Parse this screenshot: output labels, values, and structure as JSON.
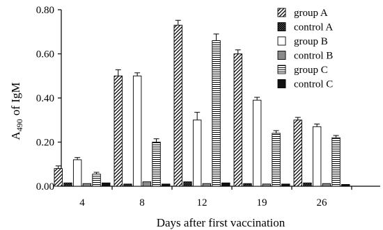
{
  "chart_data": {
    "type": "bar",
    "xlabel": "Days after first vaccination",
    "ylabel_main": "A",
    "ylabel_sub": "490",
    "ylabel_rest": "of IgM",
    "categories": [
      "4",
      "8",
      "12",
      "19",
      "26"
    ],
    "ylim": [
      0,
      0.8
    ],
    "yticks": [
      "0.00",
      "0.20",
      "0.40",
      "0.60",
      "0.80"
    ],
    "ytick_values": [
      0,
      0.2,
      0.4,
      0.6,
      0.8
    ],
    "legend_position": "top-right",
    "series": [
      {
        "name": "group A",
        "pattern": "diag-light",
        "values": [
          0.08,
          0.5,
          0.73,
          0.6,
          0.3
        ],
        "errors": [
          0.012,
          0.028,
          0.022,
          0.018,
          0.012
        ]
      },
      {
        "name": "control A",
        "pattern": "diag-dense",
        "values": [
          0.015,
          0.01,
          0.02,
          0.012,
          0.015
        ],
        "errors": [
          0.003,
          0.002,
          0.003,
          0.002,
          0.003
        ]
      },
      {
        "name": "group B",
        "pattern": "white",
        "values": [
          0.12,
          0.5,
          0.3,
          0.39,
          0.27
        ],
        "errors": [
          0.01,
          0.014,
          0.035,
          0.013,
          0.012
        ]
      },
      {
        "name": "control B",
        "pattern": "gray",
        "values": [
          0.012,
          0.02,
          0.012,
          0.01,
          0.012
        ],
        "errors": [
          0.002,
          0.003,
          0.002,
          0.002,
          0.002
        ]
      },
      {
        "name": "group C",
        "pattern": "horiz-lines",
        "values": [
          0.055,
          0.2,
          0.66,
          0.24,
          0.22
        ],
        "errors": [
          0.008,
          0.015,
          0.03,
          0.012,
          0.01
        ]
      },
      {
        "name": "control C",
        "pattern": "black",
        "values": [
          0.015,
          0.01,
          0.015,
          0.01,
          0.008
        ],
        "errors": [
          0.002,
          0.002,
          0.003,
          0.002,
          0.002
        ]
      }
    ]
  }
}
